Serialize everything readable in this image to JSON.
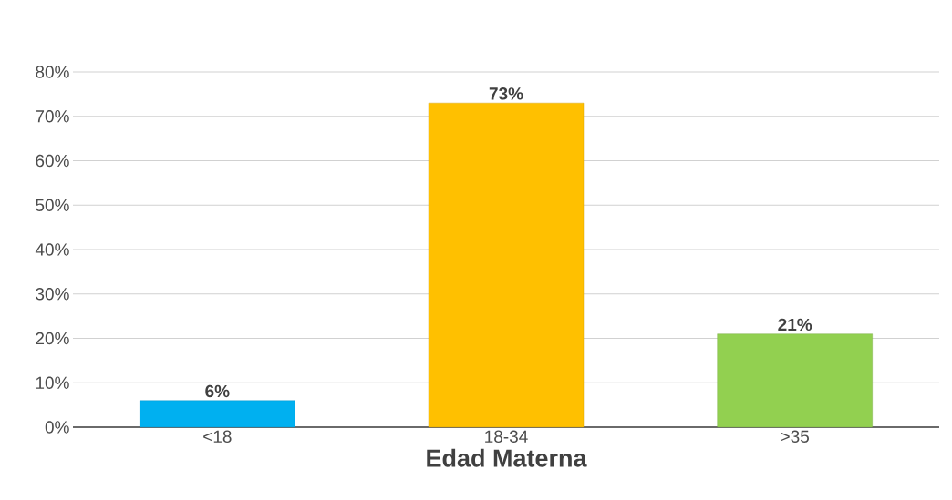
{
  "chart_data": {
    "type": "bar",
    "xlabel": "Edad Materna",
    "categories": [
      "<18",
      "18-34",
      ">35"
    ],
    "values": [
      6,
      73,
      21
    ],
    "colors": [
      "#00b0f0",
      "#ffc000",
      "#92d050"
    ],
    "value_labels": [
      "6%",
      "73%",
      "21%"
    ],
    "ylim": [
      0,
      80
    ],
    "yticks": [
      {
        "value": 0,
        "label": "0%"
      },
      {
        "value": 10,
        "label": "10%"
      },
      {
        "value": 20,
        "label": "20%"
      },
      {
        "value": 30,
        "label": "30%"
      },
      {
        "value": 40,
        "label": "40%"
      },
      {
        "value": 50,
        "label": "50%"
      },
      {
        "value": 60,
        "label": "60%"
      },
      {
        "value": 70,
        "label": "70%"
      },
      {
        "value": 80,
        "label": "80%"
      }
    ],
    "grid": "y"
  }
}
